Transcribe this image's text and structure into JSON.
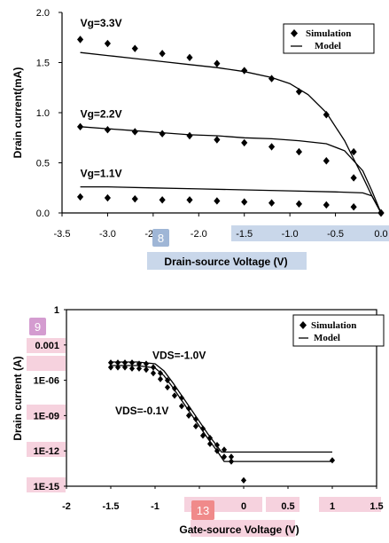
{
  "chart_data": [
    {
      "type": "scatter",
      "ylabel": "Drain current(mA)",
      "xlabel": "Drain-source Voltage (V)",
      "xlim": [
        -3.5,
        0.0
      ],
      "ylim": [
        0,
        2.0
      ],
      "x_ticks": [
        "-3.5",
        "-3.0",
        "-2.5",
        "-2.0",
        "-1.5",
        "-1.0",
        "-0.5",
        "0.0"
      ],
      "y_ticks": [
        "0.0",
        "0.5",
        "1.0",
        "1.5",
        "2.0"
      ],
      "legend": {
        "position": "top-right",
        "simulation": "Simulation",
        "model": "Model"
      },
      "series": [
        {
          "name": "Vg=3.3V",
          "label_at": [
            -3.3,
            1.86
          ],
          "simulation": [
            [
              -3.3,
              1.73
            ],
            [
              -3.0,
              1.69
            ],
            [
              -2.7,
              1.64
            ],
            [
              -2.4,
              1.59
            ],
            [
              -2.1,
              1.55
            ],
            [
              -1.8,
              1.49
            ],
            [
              -1.5,
              1.42
            ],
            [
              -1.2,
              1.34
            ],
            [
              -0.9,
              1.21
            ],
            [
              -0.6,
              0.98
            ],
            [
              -0.3,
              0.61
            ],
            [
              0.0,
              0.0
            ]
          ],
          "model": [
            [
              -3.3,
              1.6
            ],
            [
              -3.0,
              1.57
            ],
            [
              -2.7,
              1.54
            ],
            [
              -2.4,
              1.51
            ],
            [
              -2.1,
              1.48
            ],
            [
              -1.8,
              1.45
            ],
            [
              -1.5,
              1.41
            ],
            [
              -1.2,
              1.35
            ],
            [
              -1.0,
              1.29
            ],
            [
              -0.8,
              1.18
            ],
            [
              -0.6,
              1.0
            ],
            [
              -0.4,
              0.72
            ],
            [
              -0.3,
              0.54
            ],
            [
              -0.2,
              0.36
            ],
            [
              -0.1,
              0.17
            ],
            [
              0.0,
              0.0
            ]
          ]
        },
        {
          "name": "Vg=2.2V",
          "label_at": [
            -3.3,
            0.95
          ],
          "simulation": [
            [
              -3.3,
              0.86
            ],
            [
              -3.0,
              0.83
            ],
            [
              -2.7,
              0.81
            ],
            [
              -2.4,
              0.79
            ],
            [
              -2.1,
              0.77
            ],
            [
              -1.8,
              0.73
            ],
            [
              -1.5,
              0.7
            ],
            [
              -1.2,
              0.66
            ],
            [
              -0.9,
              0.61
            ],
            [
              -0.6,
              0.52
            ],
            [
              -0.3,
              0.35
            ],
            [
              0.0,
              0.0
            ]
          ],
          "model": [
            [
              -3.3,
              0.86
            ],
            [
              -3.0,
              0.84
            ],
            [
              -2.7,
              0.82
            ],
            [
              -2.4,
              0.8
            ],
            [
              -2.1,
              0.78
            ],
            [
              -1.8,
              0.77
            ],
            [
              -1.5,
              0.75
            ],
            [
              -1.2,
              0.74
            ],
            [
              -0.9,
              0.72
            ],
            [
              -0.6,
              0.69
            ],
            [
              -0.4,
              0.62
            ],
            [
              -0.2,
              0.42
            ],
            [
              -0.1,
              0.22
            ],
            [
              0.0,
              0.0
            ]
          ]
        },
        {
          "name": "Vg=1.1V",
          "label_at": [
            -3.3,
            0.36
          ],
          "simulation": [
            [
              -3.3,
              0.16
            ],
            [
              -3.0,
              0.15
            ],
            [
              -2.7,
              0.14
            ],
            [
              -2.4,
              0.13
            ],
            [
              -2.1,
              0.13
            ],
            [
              -1.8,
              0.12
            ],
            [
              -1.5,
              0.11
            ],
            [
              -1.2,
              0.1
            ],
            [
              -0.9,
              0.09
            ],
            [
              -0.6,
              0.08
            ],
            [
              -0.3,
              0.06
            ],
            [
              0.0,
              0.0
            ]
          ],
          "model": [
            [
              -3.3,
              0.26
            ],
            [
              -3.0,
              0.26
            ],
            [
              -2.5,
              0.25
            ],
            [
              -2.0,
              0.24
            ],
            [
              -1.5,
              0.23
            ],
            [
              -1.0,
              0.22
            ],
            [
              -0.5,
              0.21
            ],
            [
              -0.2,
              0.2
            ],
            [
              -0.1,
              0.17
            ],
            [
              0.0,
              0.0
            ]
          ]
        }
      ]
    },
    {
      "type": "scatter",
      "ylabel": "Drain current (A)",
      "xlabel": "Gate-source Voltage (V)",
      "yscale": "log",
      "xlim": [
        -2,
        1.5
      ],
      "ylim_exp": [
        -15,
        0
      ],
      "x_ticks": [
        "-2",
        "-1.5",
        "-1",
        "-0.5",
        "0",
        "0.5",
        "1",
        "1.5"
      ],
      "y_ticks": [
        {
          "label": "1",
          "exp": 0
        },
        {
          "label": "0.001",
          "exp": -3
        },
        {
          "label": "1E-06",
          "exp": -6
        },
        {
          "label": "1E-09",
          "exp": -9
        },
        {
          "label": "1E-12",
          "exp": -12
        },
        {
          "label": "1E-15",
          "exp": -15
        }
      ],
      "legend": {
        "position": "top-right",
        "simulation": "Simulation",
        "model": "Model"
      },
      "series": [
        {
          "name": "VDS=-1.0V",
          "label_at": [
            -1.03,
            -4.2
          ],
          "simulation": [
            [
              -1.5,
              -4.5
            ],
            [
              -1.42,
              -4.5
            ],
            [
              -1.34,
              -4.5
            ],
            [
              -1.26,
              -4.5
            ],
            [
              -1.18,
              -4.6
            ],
            [
              -1.1,
              -4.6
            ],
            [
              -1.02,
              -4.9
            ],
            [
              -0.94,
              -5.4
            ],
            [
              -0.86,
              -6.0
            ],
            [
              -0.78,
              -6.7
            ],
            [
              -0.7,
              -7.5
            ],
            [
              -0.62,
              -8.4
            ],
            [
              -0.54,
              -9.3
            ],
            [
              -0.46,
              -10.1
            ],
            [
              -0.38,
              -10.9
            ],
            [
              -0.3,
              -11.5
            ],
            [
              -0.22,
              -11.9
            ],
            [
              -0.14,
              -12.5
            ],
            [
              0.0,
              -14.5
            ],
            [
              1.0,
              -12.8
            ]
          ],
          "model": [
            [
              -1.5,
              -4.45
            ],
            [
              -1.2,
              -4.45
            ],
            [
              -1.0,
              -4.6
            ],
            [
              -0.9,
              -5.2
            ],
            [
              -0.8,
              -6.2
            ],
            [
              -0.7,
              -7.3
            ],
            [
              -0.6,
              -8.4
            ],
            [
              -0.5,
              -9.5
            ],
            [
              -0.4,
              -10.6
            ],
            [
              -0.3,
              -11.6
            ],
            [
              -0.25,
              -12.1
            ],
            [
              1.0,
              -12.1
            ]
          ]
        },
        {
          "name": "VDS=-0.1V",
          "label_at": [
            -1.45,
            -8.9
          ],
          "simulation": [
            [
              -1.5,
              -4.9
            ],
            [
              -1.42,
              -4.9
            ],
            [
              -1.34,
              -4.9
            ],
            [
              -1.26,
              -5.0
            ],
            [
              -1.18,
              -5.0
            ],
            [
              -1.1,
              -5.1
            ],
            [
              -1.02,
              -5.4
            ],
            [
              -0.94,
              -5.9
            ],
            [
              -0.86,
              -6.6
            ],
            [
              -0.78,
              -7.3
            ],
            [
              -0.7,
              -8.2
            ],
            [
              -0.62,
              -9.0
            ],
            [
              -0.54,
              -9.9
            ],
            [
              -0.46,
              -10.7
            ],
            [
              -0.38,
              -11.4
            ],
            [
              -0.3,
              -12.0
            ],
            [
              -0.22,
              -12.5
            ],
            [
              -0.14,
              -12.9
            ]
          ],
          "model": [
            [
              -1.5,
              -4.75
            ],
            [
              -1.2,
              -4.75
            ],
            [
              -1.0,
              -4.95
            ],
            [
              -0.9,
              -5.6
            ],
            [
              -0.8,
              -6.6
            ],
            [
              -0.7,
              -7.7
            ],
            [
              -0.6,
              -8.8
            ],
            [
              -0.5,
              -9.9
            ],
            [
              -0.4,
              -11.0
            ],
            [
              -0.3,
              -12.0
            ],
            [
              -0.22,
              -12.9
            ],
            [
              1.0,
              -12.9
            ]
          ]
        }
      ]
    }
  ],
  "badges": [
    {
      "label": "8",
      "color": "#9fb6d6"
    },
    {
      "label": "9",
      "color": "#d49cd0"
    },
    {
      "label": "13",
      "color": "#f08a8a"
    }
  ],
  "highlight_colors": {
    "axis_band_blue": "#c9d7ea",
    "tick_band_pink": "#f6d2de"
  }
}
